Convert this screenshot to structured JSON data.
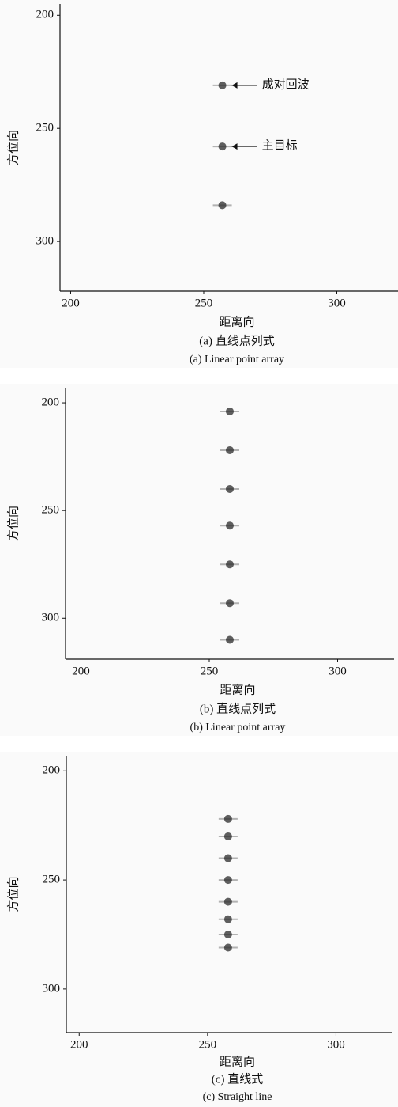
{
  "chart_data": [
    {
      "type": "scatter",
      "x_label": "距离向",
      "y_label": "方位向",
      "caption": "(a) 直线点列式",
      "caption_en": "(a) Linear point array",
      "x": [
        257,
        257,
        257
      ],
      "values": [
        231,
        258,
        284
      ],
      "color": "#2a2a2a",
      "annotations": [
        "成对回波",
        "主目标"
      ],
      "xlim": [
        196,
        323
      ],
      "ylim": [
        195,
        322
      ],
      "y_inverted": true,
      "xticks": [
        200,
        250,
        300
      ],
      "yticks": [
        200,
        250,
        300
      ],
      "grid": false
    },
    {
      "type": "scatter",
      "x_label": "距离向",
      "y_label": "方位向",
      "caption": "(b) 直线点列式",
      "caption_en": "(b) Linear point array",
      "x": [
        258,
        258,
        258,
        258,
        258,
        258,
        258
      ],
      "values": [
        204,
        222,
        240,
        257,
        275,
        293,
        310
      ],
      "color": "#2a2a2a",
      "xlim": [
        194,
        322
      ],
      "ylim": [
        193,
        319
      ],
      "y_inverted": true,
      "xticks": [
        200,
        250,
        300
      ],
      "yticks": [
        200,
        250,
        300
      ],
      "grid": false
    },
    {
      "type": "scatter",
      "x_label": "距离向",
      "y_label": "方位向",
      "caption": "(c) 直线式",
      "caption_en": "(c) Straight line",
      "x": [
        258,
        258,
        258,
        258,
        258,
        258,
        258,
        258
      ],
      "values": [
        222,
        230,
        240,
        250,
        260,
        268,
        275,
        281
      ],
      "color": "#2a2a2a",
      "xlim": [
        195,
        322
      ],
      "ylim": [
        193,
        320
      ],
      "y_inverted": true,
      "xticks": [
        200,
        250,
        300
      ],
      "yticks": [
        200,
        250,
        300
      ],
      "grid": false
    }
  ]
}
